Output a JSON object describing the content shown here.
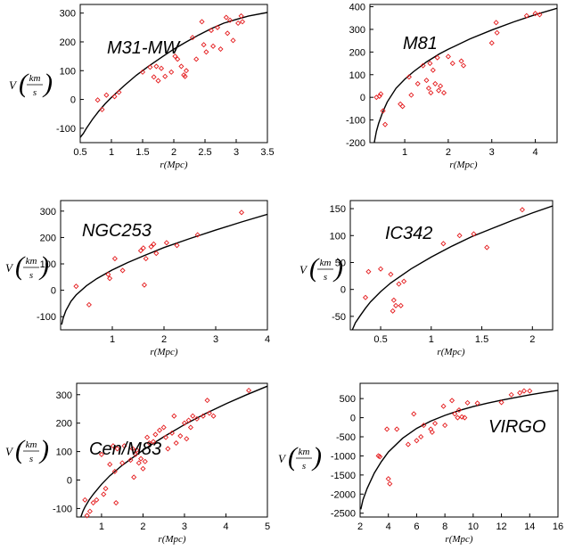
{
  "chart_data": [
    {
      "type": "scatter",
      "title": "M31-MW",
      "xlabel": "r(Mpc)",
      "ylabel": "V",
      "ylabel_fraction": {
        "numerator": "km",
        "denominator": "s"
      },
      "xlim": [
        0.5,
        3.5
      ],
      "ylim": [
        -150,
        330
      ],
      "xticks": [
        0.5,
        1,
        1.5,
        2,
        2.5,
        3,
        3.5
      ],
      "xticklabels": [
        "0.5",
        "1",
        "1.5",
        "2",
        "2.5",
        "3",
        "3.5"
      ],
      "yticks": [
        -100,
        0,
        100,
        200,
        300
      ],
      "yticklabels": [
        "-100",
        "0",
        "100",
        "200",
        "300"
      ],
      "points": {
        "x": [
          0.78,
          0.85,
          0.92,
          1.05,
          1.12,
          1.5,
          1.62,
          1.68,
          1.72,
          1.75,
          1.8,
          1.86,
          1.96,
          2.02,
          2.06,
          2.12,
          2.16,
          2.18,
          2.2,
          2.3,
          2.36,
          2.45,
          2.48,
          2.52,
          2.6,
          2.63,
          2.7,
          2.75,
          2.84,
          2.86,
          2.9,
          2.95,
          3.03,
          3.08,
          3.1
        ],
        "y": [
          -2,
          -35,
          15,
          10,
          25,
          95,
          112,
          78,
          115,
          65,
          108,
          80,
          95,
          150,
          140,
          115,
          85,
          80,
          100,
          215,
          140,
          270,
          190,
          165,
          240,
          185,
          250,
          175,
          285,
          230,
          275,
          205,
          265,
          290,
          270
        ]
      },
      "curve": {
        "x": [
          0.5,
          0.55,
          0.6,
          0.7,
          0.8,
          0.9,
          1.0,
          1.2,
          1.4,
          1.6,
          1.8,
          2.0,
          2.2,
          2.4,
          2.6,
          2.8,
          3.0,
          3.2,
          3.5
        ],
        "y": [
          -132,
          -118,
          -100,
          -68,
          -40,
          -15,
          7,
          47,
          84,
          116,
          146,
          175,
          200,
          224,
          246,
          265,
          278,
          290,
          302
        ]
      }
    },
    {
      "type": "scatter",
      "title": "M81",
      "xlabel": "r(Mpc)",
      "ylabel": "",
      "xlim": [
        0.2,
        4.5
      ],
      "ylim": [
        -200,
        410
      ],
      "xticks": [
        1,
        2,
        3,
        4
      ],
      "xticklabels": [
        "1",
        "2",
        "3",
        "4"
      ],
      "yticks": [
        -200,
        -100,
        0,
        100,
        200,
        300,
        400
      ],
      "yticklabels": [
        "-200",
        "-100",
        "0",
        "100",
        "200",
        "300",
        "400"
      ],
      "points": {
        "x": [
          0.35,
          0.42,
          0.45,
          0.5,
          0.55,
          0.9,
          0.95,
          1.1,
          1.15,
          1.3,
          1.42,
          1.5,
          1.55,
          1.58,
          1.6,
          1.65,
          1.7,
          1.75,
          1.78,
          1.82,
          1.9,
          2.0,
          2.1,
          2.3,
          2.35,
          3.0,
          3.1,
          3.12,
          3.8,
          4.0,
          4.1
        ],
        "y": [
          0,
          5,
          15,
          -60,
          -120,
          -30,
          -40,
          90,
          10,
          60,
          140,
          75,
          40,
          150,
          20,
          120,
          60,
          175,
          30,
          50,
          20,
          180,
          150,
          160,
          140,
          240,
          330,
          285,
          360,
          370,
          365
        ]
      },
      "curve": {
        "x": [
          0.3,
          0.35,
          0.4,
          0.5,
          0.6,
          0.8,
          1.0,
          1.2,
          1.5,
          1.8,
          2.0,
          2.5,
          3.0,
          3.5,
          4.0,
          4.5
        ],
        "y": [
          -200,
          -150,
          -115,
          -62,
          -20,
          40,
          80,
          113,
          156,
          192,
          212,
          258,
          297,
          333,
          365,
          393
        ]
      }
    },
    {
      "type": "scatter",
      "title": "NGC253",
      "xlabel": "r(Mpc)",
      "ylabel": "V",
      "ylabel_fraction": {
        "numerator": "km",
        "denominator": "s"
      },
      "xlim": [
        0,
        4
      ],
      "ylim": [
        -150,
        340
      ],
      "xticks": [
        1,
        2,
        3,
        4
      ],
      "xticklabels": [
        "1",
        "2",
        "3",
        "4"
      ],
      "yticks": [
        -100,
        0,
        100,
        200,
        300
      ],
      "yticklabels": [
        "-100",
        "0",
        "100",
        "200",
        "300"
      ],
      "points": {
        "x": [
          0.3,
          0.55,
          0.92,
          0.95,
          1.05,
          1.2,
          1.55,
          1.6,
          1.62,
          1.65,
          1.75,
          1.8,
          1.85,
          2.05,
          2.25,
          2.65,
          3.5
        ],
        "y": [
          15,
          -55,
          60,
          45,
          120,
          75,
          150,
          160,
          20,
          120,
          165,
          175,
          140,
          180,
          170,
          210,
          295
        ]
      },
      "curve": {
        "x": [
          0.02,
          0.05,
          0.1,
          0.2,
          0.3,
          0.5,
          0.7,
          1.0,
          1.3,
          1.6,
          2.0,
          2.5,
          3.0,
          3.5,
          4.0
        ],
        "y": [
          -130,
          -105,
          -78,
          -42,
          -18,
          17,
          44,
          77,
          105,
          130,
          162,
          196,
          228,
          259,
          288
        ]
      }
    },
    {
      "type": "scatter",
      "title": "IC342",
      "xlabel": "r(Mpc)",
      "ylabel": "V",
      "ylabel_fraction": {
        "numerator": "km",
        "denominator": "s"
      },
      "xlim": [
        0.2,
        2.2
      ],
      "ylim": [
        -75,
        165
      ],
      "xticks": [
        0.5,
        1,
        1.5,
        2
      ],
      "xticklabels": [
        "0.5",
        "1",
        "1.5",
        "2"
      ],
      "yticks": [
        -50,
        0,
        50,
        100,
        150
      ],
      "yticklabels": [
        "-50",
        "0",
        "50",
        "100",
        "150"
      ],
      "points": {
        "x": [
          0.35,
          0.38,
          0.5,
          0.6,
          0.62,
          0.63,
          0.65,
          0.68,
          0.7,
          0.73,
          1.12,
          1.28,
          1.42,
          1.55,
          1.9
        ],
        "y": [
          -15,
          33,
          38,
          28,
          -40,
          -20,
          -30,
          10,
          -30,
          15,
          85,
          100,
          103,
          78,
          148
        ]
      },
      "curve": {
        "x": [
          0.22,
          0.25,
          0.3,
          0.35,
          0.4,
          0.5,
          0.6,
          0.8,
          1.0,
          1.2,
          1.4,
          1.6,
          1.8,
          2.0,
          2.2
        ],
        "y": [
          -75,
          -62,
          -48,
          -35,
          -23,
          -4,
          12,
          38,
          60,
          80,
          98,
          113,
          128,
          142,
          155
        ]
      }
    },
    {
      "type": "scatter",
      "title": "Cen/M83",
      "xlabel": "r(Mpc)",
      "ylabel": "V",
      "ylabel_fraction": {
        "numerator": "km",
        "denominator": "s"
      },
      "xlim": [
        0.4,
        5
      ],
      "ylim": [
        -130,
        340
      ],
      "xticks": [
        1,
        2,
        3,
        4,
        5
      ],
      "xticklabels": [
        "1",
        "2",
        "3",
        "4",
        "5"
      ],
      "yticks": [
        -100,
        0,
        100,
        200,
        300
      ],
      "yticklabels": [
        "-100",
        "0",
        "100",
        "200",
        "300"
      ],
      "points": {
        "x": [
          0.6,
          0.65,
          0.72,
          0.8,
          0.88,
          1.0,
          1.05,
          1.1,
          1.2,
          1.28,
          1.32,
          1.35,
          1.38,
          1.5,
          1.55,
          1.7,
          1.75,
          1.78,
          1.82,
          1.85,
          1.9,
          1.95,
          2.0,
          2.05,
          2.1,
          2.15,
          2.25,
          2.3,
          2.4,
          2.5,
          2.55,
          2.6,
          2.7,
          2.75,
          2.8,
          2.9,
          3.0,
          3.05,
          3.1,
          3.15,
          3.2,
          3.3,
          3.45,
          3.55,
          3.6,
          3.7,
          4.55
        ],
        "y": [
          -70,
          -125,
          -110,
          -80,
          -70,
          90,
          -50,
          -30,
          55,
          120,
          30,
          -80,
          110,
          60,
          120,
          70,
          110,
          10,
          90,
          105,
          60,
          75,
          40,
          65,
          150,
          130,
          135,
          160,
          175,
          185,
          150,
          110,
          165,
          225,
          130,
          155,
          200,
          145,
          210,
          185,
          225,
          215,
          225,
          280,
          235,
          225,
          315
        ]
      },
      "curve": {
        "x": [
          0.5,
          0.55,
          0.6,
          0.7,
          0.8,
          1.0,
          1.2,
          1.5,
          2.0,
          2.5,
          3.0,
          3.5,
          4.0,
          4.5,
          5.0
        ],
        "y": [
          -130,
          -110,
          -95,
          -70,
          -50,
          -15,
          15,
          52,
          105,
          152,
          195,
          233,
          268,
          300,
          330
        ]
      }
    },
    {
      "type": "scatter",
      "title": "VIRGO",
      "xlabel": "r(Mpc)",
      "ylabel": "V",
      "ylabel_fraction": {
        "numerator": "km",
        "denominator": "s"
      },
      "xlim": [
        2,
        16
      ],
      "ylim": [
        -2600,
        900
      ],
      "xticks": [
        2,
        4,
        6,
        8,
        10,
        12,
        14,
        16
      ],
      "xticklabels": [
        "2",
        "4",
        "6",
        "8",
        "10",
        "12",
        "14",
        "16"
      ],
      "yticks": [
        -2500,
        -2000,
        -1500,
        -1000,
        -500,
        0,
        500
      ],
      "yticklabels": [
        "-2500",
        "-2000",
        "-1500",
        "-1000",
        "-500",
        "0",
        "500"
      ],
      "points": {
        "x": [
          3.3,
          3.4,
          3.9,
          4.0,
          4.1,
          4.6,
          5.4,
          5.8,
          6.0,
          6.3,
          6.5,
          7.0,
          7.1,
          7.3,
          7.9,
          8.0,
          8.5,
          8.7,
          8.9,
          9.0,
          9.2,
          9.4,
          9.6,
          10.3,
          12.0,
          12.7,
          13.3,
          13.6,
          14.0
        ],
        "y": [
          -1000,
          -1020,
          -300,
          -1600,
          -1730,
          -300,
          -700,
          100,
          -600,
          -500,
          -200,
          -300,
          -380,
          -150,
          300,
          -200,
          450,
          100,
          0,
          200,
          20,
          0,
          390,
          380,
          400,
          600,
          650,
          700,
          700
        ]
      },
      "curve": {
        "x": [
          2.05,
          2.2,
          2.5,
          3.0,
          3.5,
          4.0,
          5.0,
          6.0,
          7.0,
          8.0,
          9.0,
          10.0,
          11.0,
          12.0,
          13.0,
          14.0,
          15.0,
          16.0
        ],
        "y": [
          -2400,
          -2150,
          -1850,
          -1450,
          -1150,
          -900,
          -540,
          -280,
          -90,
          60,
          185,
          290,
          380,
          460,
          530,
          600,
          660,
          715
        ]
      }
    }
  ]
}
